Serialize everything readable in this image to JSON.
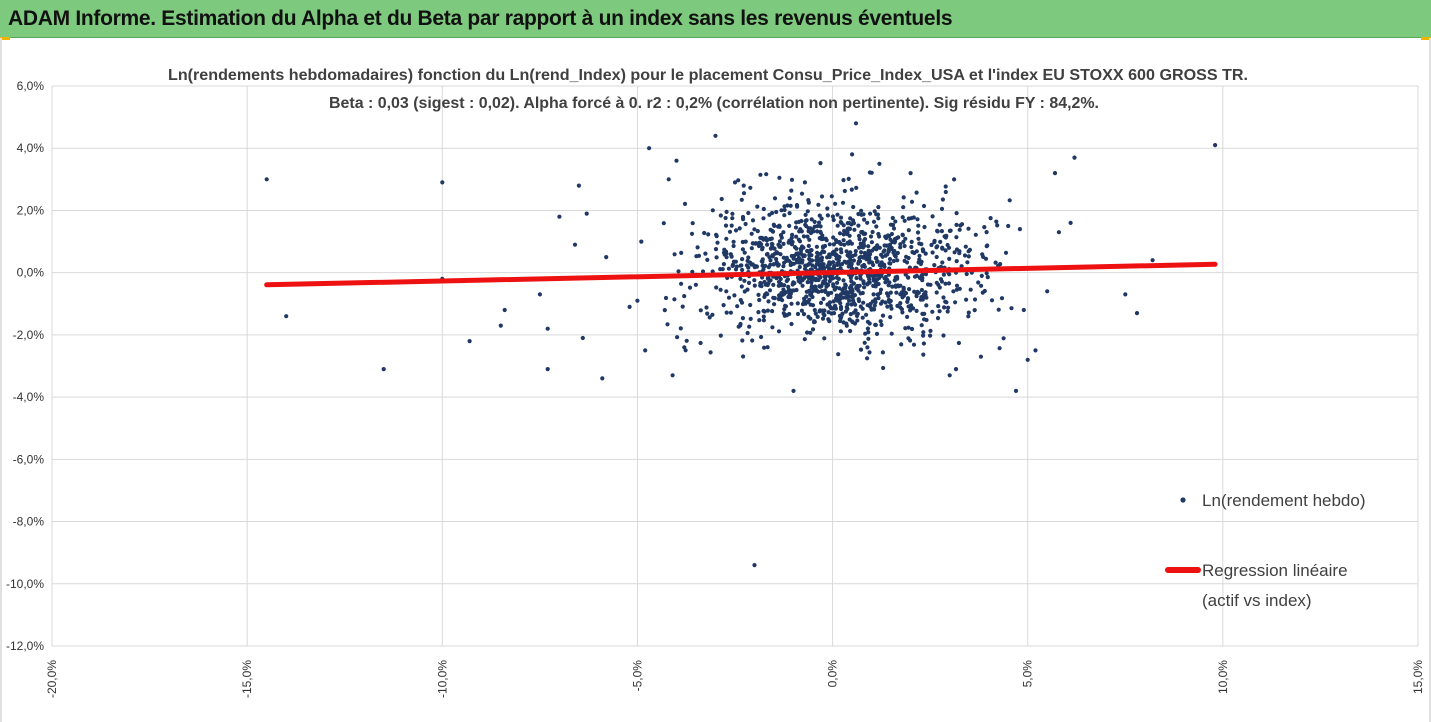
{
  "banner": {
    "title": "ADAM Informe. Estimation du Alpha et du Beta par rapport à un index sans les revenus éventuels"
  },
  "colors": {
    "banner": "#7dc97d",
    "points": "#1f3864",
    "regression": "#ee1111",
    "grid": "#d9d9d9",
    "corner": "#f0b400"
  },
  "chart_data": {
    "type": "scatter",
    "title_lines": [
      "Ln(rendements hebdomadaires) fonction du Ln(rend_Index) pour le placement Consu_Price_Index_USA et l'index EU STOXX 600 GROSS TR.",
      "Beta : 0,03 (sigest : 0,02). Alpha forcé à 0. r2 : 0,2% (corrélation non pertinente). Sig résidu FY : 84,2%."
    ],
    "xlim": [
      -0.2,
      0.15
    ],
    "ylim": [
      -0.12,
      0.06
    ],
    "x_ticks": [
      "-20,0%",
      "-15,0%",
      "-10,0%",
      "-5,0%",
      "0,0%",
      "5,0%",
      "10,0%",
      "15,0%"
    ],
    "y_ticks": [
      "6,0%",
      "4,0%",
      "2,0%",
      "0,0%",
      "-2,0%",
      "-4,0%",
      "-6,0%",
      "-8,0%",
      "-10,0%",
      "-12,0%"
    ],
    "grid": "horizontal and vertical",
    "legend_position": "right",
    "series": [
      {
        "name": "Ln(rendement hebdo)",
        "kind": "scatter",
        "cloud_center": [
          0.001,
          0.001
        ],
        "cloud_std": [
          0.018,
          0.011
        ],
        "cloud_count": 1300,
        "outliers": [
          [
            -0.145,
            0.03
          ],
          [
            -0.14,
            -0.014
          ],
          [
            -0.115,
            -0.031
          ],
          [
            -0.1,
            0.029
          ],
          [
            -0.1,
            -0.002
          ],
          [
            -0.093,
            -0.022
          ],
          [
            -0.085,
            -0.017
          ],
          [
            -0.084,
            -0.012
          ],
          [
            -0.075,
            -0.007
          ],
          [
            -0.073,
            -0.018
          ],
          [
            -0.073,
            -0.031
          ],
          [
            -0.07,
            0.018
          ],
          [
            -0.066,
            0.009
          ],
          [
            -0.065,
            0.028
          ],
          [
            -0.064,
            -0.021
          ],
          [
            -0.063,
            0.019
          ],
          [
            -0.059,
            -0.034
          ],
          [
            -0.058,
            0.005
          ],
          [
            -0.052,
            -0.011
          ],
          [
            -0.05,
            -0.009
          ],
          [
            -0.049,
            0.01
          ],
          [
            -0.048,
            -0.025
          ],
          [
            -0.047,
            0.04
          ],
          [
            -0.042,
            0.03
          ],
          [
            -0.041,
            -0.033
          ],
          [
            -0.04,
            0.036
          ],
          [
            -0.038,
            -0.024
          ],
          [
            -0.03,
            0.044
          ],
          [
            -0.025,
            0.029
          ],
          [
            -0.02,
            -0.094
          ],
          [
            -0.01,
            -0.038
          ],
          [
            0.006,
            0.048
          ],
          [
            0.005,
            0.038
          ],
          [
            0.012,
            0.035
          ],
          [
            0.02,
            0.032
          ],
          [
            0.03,
            -0.033
          ],
          [
            0.038,
            -0.027
          ],
          [
            0.045,
            0.015
          ],
          [
            0.047,
            -0.038
          ],
          [
            0.048,
            0.014
          ],
          [
            0.049,
            -0.012
          ],
          [
            0.05,
            -0.028
          ],
          [
            0.052,
            -0.025
          ],
          [
            0.055,
            -0.006
          ],
          [
            0.057,
            0.032
          ],
          [
            0.058,
            0.013
          ],
          [
            0.061,
            0.016
          ],
          [
            0.062,
            0.037
          ],
          [
            0.075,
            -0.007
          ],
          [
            0.078,
            -0.013
          ],
          [
            0.082,
            0.004
          ],
          [
            0.098,
            0.041
          ]
        ]
      },
      {
        "name": "Regression linéaire",
        "name_line2": "(actif vs index)",
        "kind": "line",
        "x": [
          -0.145,
          0.098
        ],
        "y": [
          -0.0039,
          0.0027
        ]
      }
    ]
  }
}
